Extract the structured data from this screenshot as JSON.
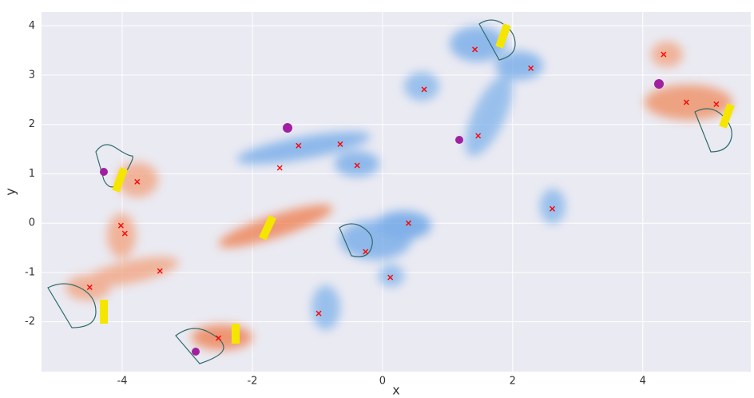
{
  "chart_data": {
    "type": "scatter",
    "xlabel": "x",
    "ylabel": "y",
    "xlim": [
      -5.24,
      5.66
    ],
    "ylim": [
      -3.01,
      4.28
    ],
    "xticks": [
      -4,
      -2,
      0,
      2,
      4
    ],
    "yticks": [
      -2,
      -1,
      0,
      1,
      2,
      3,
      4
    ],
    "grid": true,
    "color": "red",
    "x": [
      1.42,
      2.28,
      0.64,
      4.32,
      4.67,
      5.13,
      1.47,
      -0.65,
      -1.29,
      -1.58,
      -0.39,
      -3.77,
      2.61,
      -4.02,
      -3.96,
      0.4,
      -0.26,
      -3.42,
      0.12,
      -4.5,
      -0.98,
      -2.52
    ],
    "y": [
      3.52,
      3.14,
      2.71,
      3.42,
      2.45,
      2.41,
      1.77,
      1.6,
      1.57,
      1.12,
      1.17,
      0.84,
      0.29,
      -0.05,
      -0.21,
      0.0,
      -0.58,
      -0.97,
      -1.1,
      -1.3,
      -1.83,
      -2.33
    ]
  }
}
